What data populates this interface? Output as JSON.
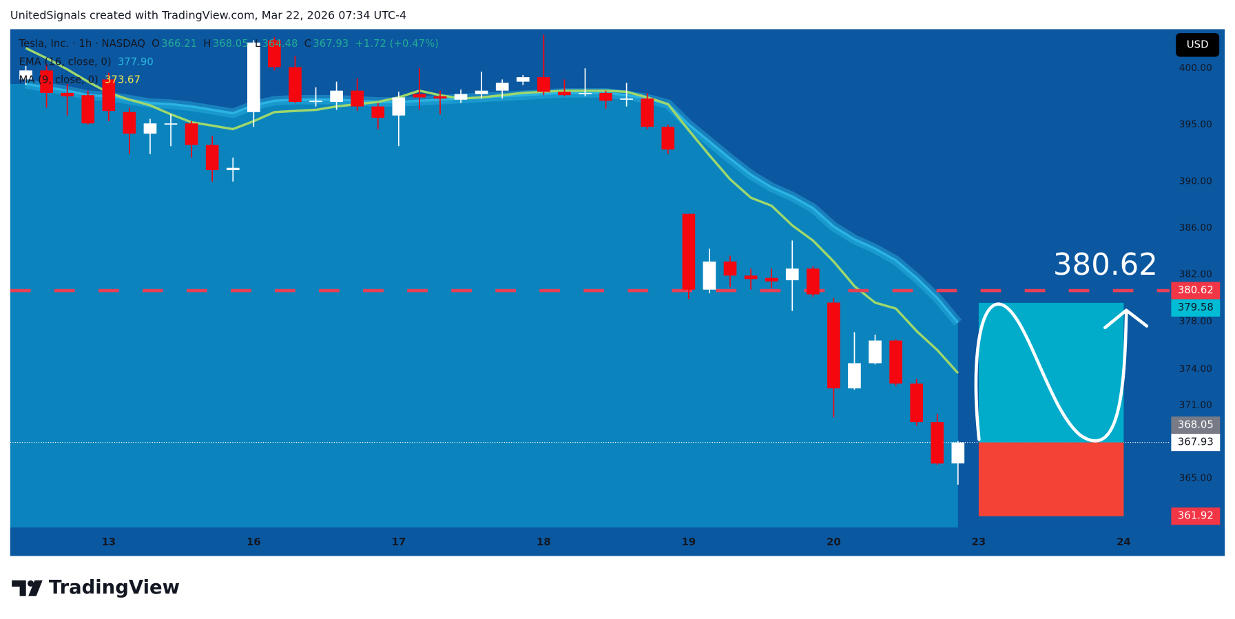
{
  "header": "UnitedSignals created with TradingView.com, Mar 22, 2026 07:34 UTC-4",
  "brand": "TradingView",
  "chart_data": {
    "type": "candlestick",
    "symbol": "Tesla, Inc. · 1h · NASDAQ",
    "ohlc_letters": [
      "O",
      "H",
      "L",
      "C"
    ],
    "change": "+1.72 (+0.47%)",
    "currency": "USD",
    "log_scale": true,
    "grid": false,
    "up_color": "#ffffff",
    "down_color": "#f5070f",
    "background": "#0b57a0",
    "categories": [
      null,
      null,
      null,
      null,
      "13",
      null,
      null,
      null,
      null,
      null,
      null,
      "16",
      null,
      null,
      null,
      null,
      null,
      null,
      "17",
      null,
      null,
      null,
      null,
      null,
      null,
      "18",
      null,
      null,
      null,
      null,
      null,
      null,
      "19",
      null,
      null,
      null,
      null,
      null,
      null,
      "20",
      null,
      null,
      null,
      null,
      null,
      null,
      "23",
      null,
      null,
      null,
      null,
      null,
      null,
      "24"
    ],
    "open": [
      399.0,
      399.8,
      397.8,
      397.6,
      399.0,
      396.1,
      394.2,
      395.0,
      395.1,
      393.2,
      391.0,
      396.1,
      402.5,
      400.1,
      397.0,
      397.0,
      398.0,
      396.6,
      395.8,
      397.7,
      397.5,
      397.2,
      397.7,
      398.0,
      398.8,
      399.2,
      397.9,
      397.7,
      397.8,
      397.2,
      397.3,
      394.8,
      387.2,
      380.7,
      383.1,
      381.9,
      381.7,
      381.5,
      382.5,
      379.6,
      372.4,
      374.5,
      376.4,
      372.8,
      369.6,
      366.21,
      null,
      null,
      null,
      null,
      null,
      null,
      null,
      null
    ],
    "high": [
      400.2,
      400.4,
      398.6,
      398.0,
      399.6,
      396.5,
      395.5,
      395.9,
      395.3,
      394.0,
      392.1,
      402.5,
      402.8,
      401.1,
      398.3,
      398.8,
      399.1,
      396.9,
      397.9,
      400.0,
      398.0,
      398.1,
      399.7,
      399.0,
      399.4,
      403.0,
      399.0,
      400.0,
      398.0,
      398.7,
      397.8,
      395.0,
      387.2,
      384.2,
      383.6,
      382.5,
      382.5,
      384.9,
      382.7,
      380.0,
      377.1,
      376.9,
      376.5,
      373.2,
      370.3,
      368.05,
      null,
      null,
      null,
      null,
      null,
      null,
      null,
      null
    ],
    "low": [
      398.5,
      396.5,
      395.8,
      395.0,
      395.3,
      392.4,
      392.4,
      393.1,
      392.1,
      390.0,
      390.0,
      394.8,
      399.8,
      396.9,
      396.6,
      396.3,
      396.2,
      394.6,
      393.1,
      396.3,
      395.9,
      396.9,
      397.3,
      397.3,
      398.5,
      397.6,
      397.5,
      397.5,
      396.4,
      396.6,
      394.6,
      392.4,
      379.9,
      380.4,
      380.9,
      380.7,
      380.8,
      378.9,
      380.1,
      370.0,
      372.3,
      374.4,
      372.6,
      369.3,
      366.1,
      364.48,
      null,
      null,
      null,
      null,
      null,
      null,
      null,
      null
    ],
    "close": [
      399.8,
      397.8,
      397.5,
      395.1,
      396.2,
      394.2,
      395.1,
      395.1,
      393.2,
      391.0,
      391.2,
      402.3,
      400.1,
      397.0,
      397.1,
      398.0,
      396.6,
      395.6,
      397.4,
      397.4,
      397.3,
      397.7,
      398.0,
      398.7,
      399.2,
      397.9,
      397.6,
      397.8,
      397.1,
      397.3,
      394.8,
      392.8,
      380.7,
      383.1,
      381.9,
      381.6,
      381.4,
      382.5,
      380.3,
      372.4,
      374.5,
      376.4,
      372.8,
      369.6,
      366.2,
      367.93,
      null,
      null,
      null,
      null,
      null,
      null,
      null,
      null
    ],
    "indicators": [
      {
        "name": "EMA (16, close, 0)",
        "color": "#2ab4e3",
        "area_color": "#0b84bd",
        "last_label": "377.90",
        "values": [
          398.6,
          398.3,
          398.0,
          397.6,
          397.5,
          397.2,
          396.9,
          396.8,
          396.6,
          396.3,
          396.0,
          396.7,
          397.1,
          397.2,
          397.2,
          397.2,
          397.1,
          397.0,
          397.0,
          397.1,
          397.2,
          397.3,
          397.4,
          397.5,
          397.6,
          397.7,
          397.8,
          397.8,
          397.8,
          397.6,
          397.3,
          396.8,
          395.0,
          393.5,
          392.0,
          390.6,
          389.5,
          388.7,
          387.7,
          386.1,
          385.0,
          384.2,
          383.2,
          381.7,
          380.0,
          377.9,
          null,
          null,
          null,
          null,
          null,
          null,
          null,
          null
        ]
      },
      {
        "name": "MA (9, close, 0)",
        "color": "#9ed86c",
        "label_color": "#f5e94a",
        "last_label": "373.67",
        "values": [
          401.8,
          400.9,
          399.9,
          398.8,
          397.8,
          397.2,
          396.7,
          395.9,
          395.2,
          394.9,
          394.6,
          395.3,
          396.1,
          396.2,
          396.3,
          396.6,
          396.8,
          397.0,
          397.4,
          398.0,
          397.6,
          397.3,
          397.4,
          397.6,
          397.8,
          397.9,
          398.0,
          398.0,
          398.0,
          397.9,
          397.4,
          396.8,
          394.5,
          392.3,
          390.2,
          388.6,
          387.9,
          386.2,
          384.9,
          383.1,
          381.0,
          379.6,
          379.1,
          377.2,
          375.6,
          373.67,
          null,
          null,
          null,
          null,
          null,
          null,
          null,
          null
        ]
      }
    ],
    "alert_line": 380.62,
    "position": {
      "target": 379.58,
      "entry": 367.93,
      "stop": 361.92,
      "target_color": "#00acca",
      "stop_color": "#f44336"
    },
    "ylim": [
      361,
      403.5
    ],
    "yticks": [
      {
        "value": 365,
        "label": "365.00"
      },
      {
        "value": 371,
        "label": "371.00"
      },
      {
        "value": 374,
        "label": "374.00"
      },
      {
        "value": 378,
        "label": "378.00"
      },
      {
        "value": 382,
        "label": "382.00"
      },
      {
        "value": 386,
        "label": "386.00"
      },
      {
        "value": 390,
        "label": "390.00"
      },
      {
        "value": 395,
        "label": "395.00"
      },
      {
        "value": 400,
        "label": "400.00"
      }
    ]
  }
}
